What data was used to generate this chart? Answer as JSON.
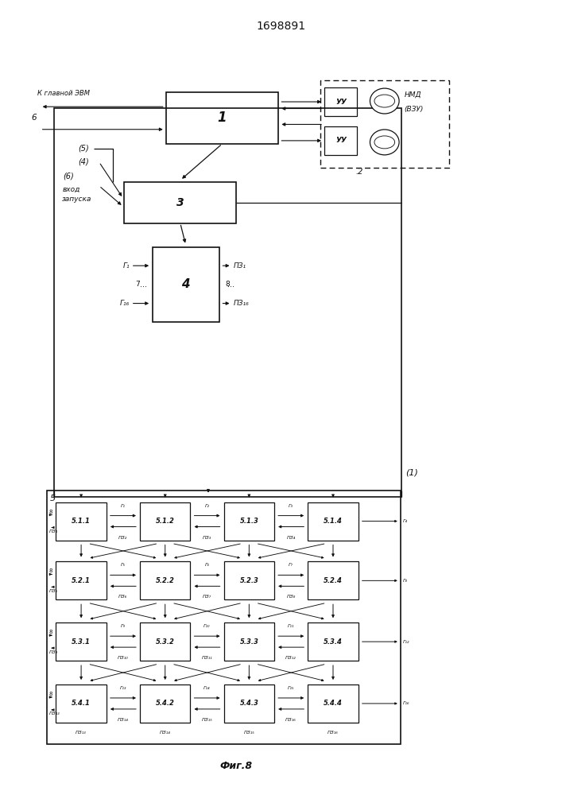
{
  "title": "1698891",
  "fig_label": "Фиг.8",
  "bg": "#ffffff",
  "lc": "#111111",
  "tc": "#111111",
  "block1": [
    0.295,
    0.82,
    0.2,
    0.065
  ],
  "block3": [
    0.22,
    0.72,
    0.2,
    0.052
  ],
  "block4": [
    0.27,
    0.595,
    0.12,
    0.095
  ],
  "outer1": [
    0.095,
    0.375,
    0.62,
    0.49
  ],
  "outer2": [
    0.57,
    0.79,
    0.23,
    0.11
  ],
  "uu1": [
    0.578,
    0.855,
    0.058,
    0.036
  ],
  "uu2": [
    0.578,
    0.806,
    0.058,
    0.036
  ],
  "outer5": [
    0.082,
    0.063,
    0.632,
    0.32
  ],
  "grid_labels": [
    [
      "5.1.1",
      "5.1.2",
      "5.1.3",
      "5.1.4"
    ],
    [
      "5.2.1",
      "5.2.2",
      "5.2.3",
      "5.2.4"
    ],
    [
      "5.3.1",
      "5.3.2",
      "5.3.3",
      "5.3.4"
    ],
    [
      "5.4.1",
      "5.4.2",
      "5.4.3",
      "5.4.4"
    ]
  ],
  "gxs": [
    0.098,
    0.248,
    0.398,
    0.548
  ],
  "gys": [
    0.32,
    0.245,
    0.168,
    0.09
  ],
  "gbw": 0.09,
  "gbh": 0.048
}
